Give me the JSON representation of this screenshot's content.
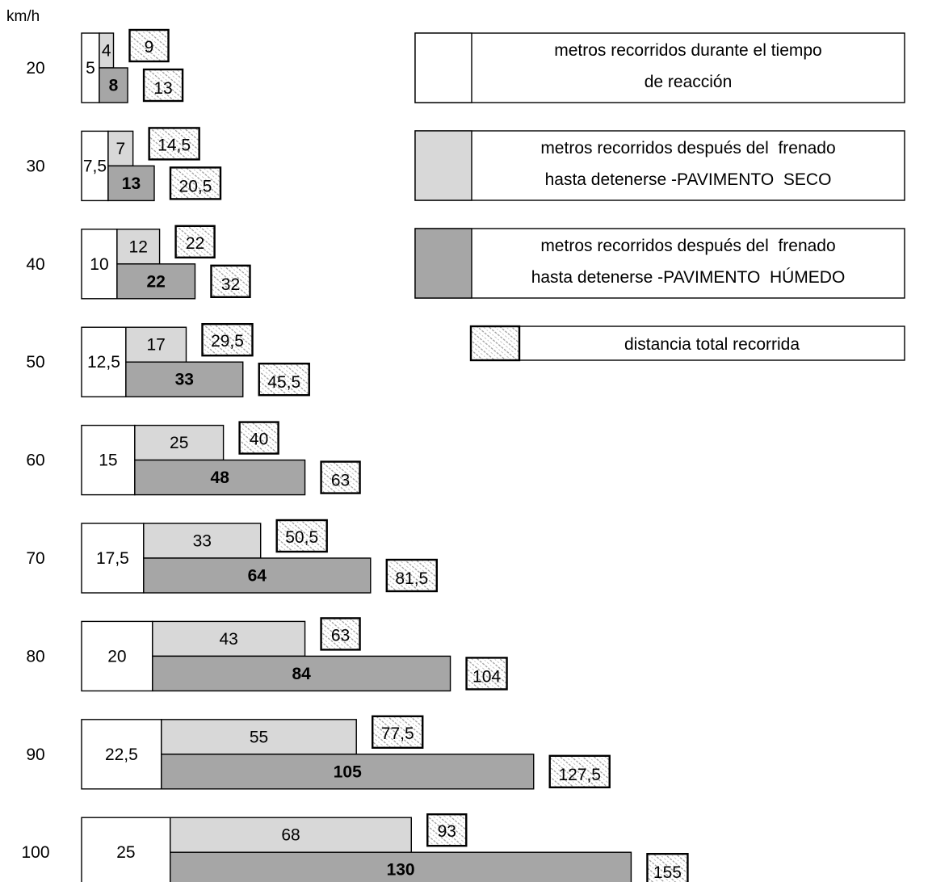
{
  "chart_data": {
    "type": "bar",
    "unit_label": "km/h",
    "categories": [
      "20",
      "30",
      "40",
      "50",
      "60",
      "70",
      "80",
      "90",
      "100"
    ],
    "series": [
      {
        "name": "metros recorridos durante el tiempo de reacción",
        "values": [
          5,
          7.5,
          10,
          12.5,
          15,
          17.5,
          20,
          22.5,
          25
        ],
        "labels": [
          "5",
          "7,5",
          "10",
          "12,5",
          "15",
          "17,5",
          "20",
          "22,5",
          "25"
        ]
      },
      {
        "name": "metros recorridos después del frenado hasta detenerse -PAVIMENTO SECO",
        "values": [
          4,
          7,
          12,
          17,
          25,
          33,
          43,
          55,
          68
        ],
        "labels": [
          "4",
          "7",
          "12",
          "17",
          "25",
          "33",
          "43",
          "55",
          "68"
        ]
      },
      {
        "name": "metros recorridos después del frenado hasta detenerse -PAVIMENTO HÚMEDO",
        "values": [
          8,
          13,
          22,
          33,
          48,
          64,
          84,
          105,
          130
        ],
        "labels": [
          "8",
          "13",
          "22",
          "33",
          "48",
          "64",
          "84",
          "105",
          "130"
        ]
      },
      {
        "name": "distancia total recorrida (seco)",
        "values": [
          9,
          14.5,
          22,
          29.5,
          40,
          50.5,
          63,
          77.5,
          93
        ],
        "labels": [
          "9",
          "14,5",
          "22",
          "29,5",
          "40",
          "50,5",
          "63",
          "77,5",
          "93"
        ]
      },
      {
        "name": "distancia total recorrida (húmedo)",
        "values": [
          13,
          20.5,
          32,
          45.5,
          63,
          81.5,
          104,
          127.5,
          155
        ],
        "labels": [
          "13",
          "20,5",
          "32",
          "45,5",
          "63",
          "81,5",
          "104",
          "127,5",
          "155"
        ]
      }
    ],
    "legend": [
      {
        "key": "reaction",
        "lines": [
          "metros recorridos durante el tiempo",
          "de reacción"
        ]
      },
      {
        "key": "dry",
        "lines": [
          "metros recorridos después del  frenado",
          "hasta detenerse -PAVIMENTO  SECO"
        ]
      },
      {
        "key": "wet",
        "lines": [
          "metros recorridos después del  frenado",
          "hasta detenerse -PAVIMENTO  HÚMEDO"
        ]
      },
      {
        "key": "total",
        "lines": [
          "distancia total recorrida"
        ]
      }
    ],
    "legend_position": "top-right",
    "colors": {
      "reaction": "#ffffff",
      "dry": "#d8d8d8",
      "wet": "#a6a6a6",
      "total_hatch": "#9a9a9a"
    }
  }
}
